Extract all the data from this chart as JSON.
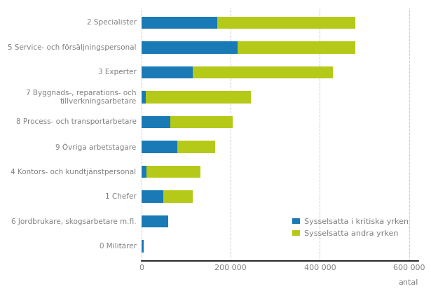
{
  "categories": [
    "0 Militärer",
    "6 Jordbrukare, skogsarbetare m.fl.",
    "1 Chefer",
    "4 Kontors- och kundtjänstpersonal",
    "9 Övriga arbetstagare",
    "8 Process- och transportarbetare",
    "7 Byggnads-, reparations- och\ntillverkningsarbetare",
    "3 Experter",
    "5 Service- och försäljningspersonal",
    "2 Specialister"
  ],
  "kritiska": [
    5000,
    60000,
    50000,
    12000,
    80000,
    65000,
    10000,
    115000,
    215000,
    170000
  ],
  "andra": [
    0,
    0,
    65000,
    120000,
    85000,
    140000,
    235000,
    315000,
    265000,
    310000
  ],
  "color_kritiska": "#1a7ab5",
  "color_andra": "#b5c918",
  "legend_kritiska": "Sysselsatta i kritiska yrken",
  "legend_andra": "Sysselsatta andra yrken",
  "xlabel": "antal",
  "xlim": [
    0,
    620000
  ],
  "xticks": [
    0,
    200000,
    400000,
    600000
  ],
  "xticklabels": [
    "0",
    "200 000",
    "400 000",
    "600 000"
  ],
  "grid_color": "#cccccc",
  "text_color": "#808080",
  "bar_height": 0.5,
  "figsize": [
    6.15,
    4.26
  ],
  "dpi": 100
}
